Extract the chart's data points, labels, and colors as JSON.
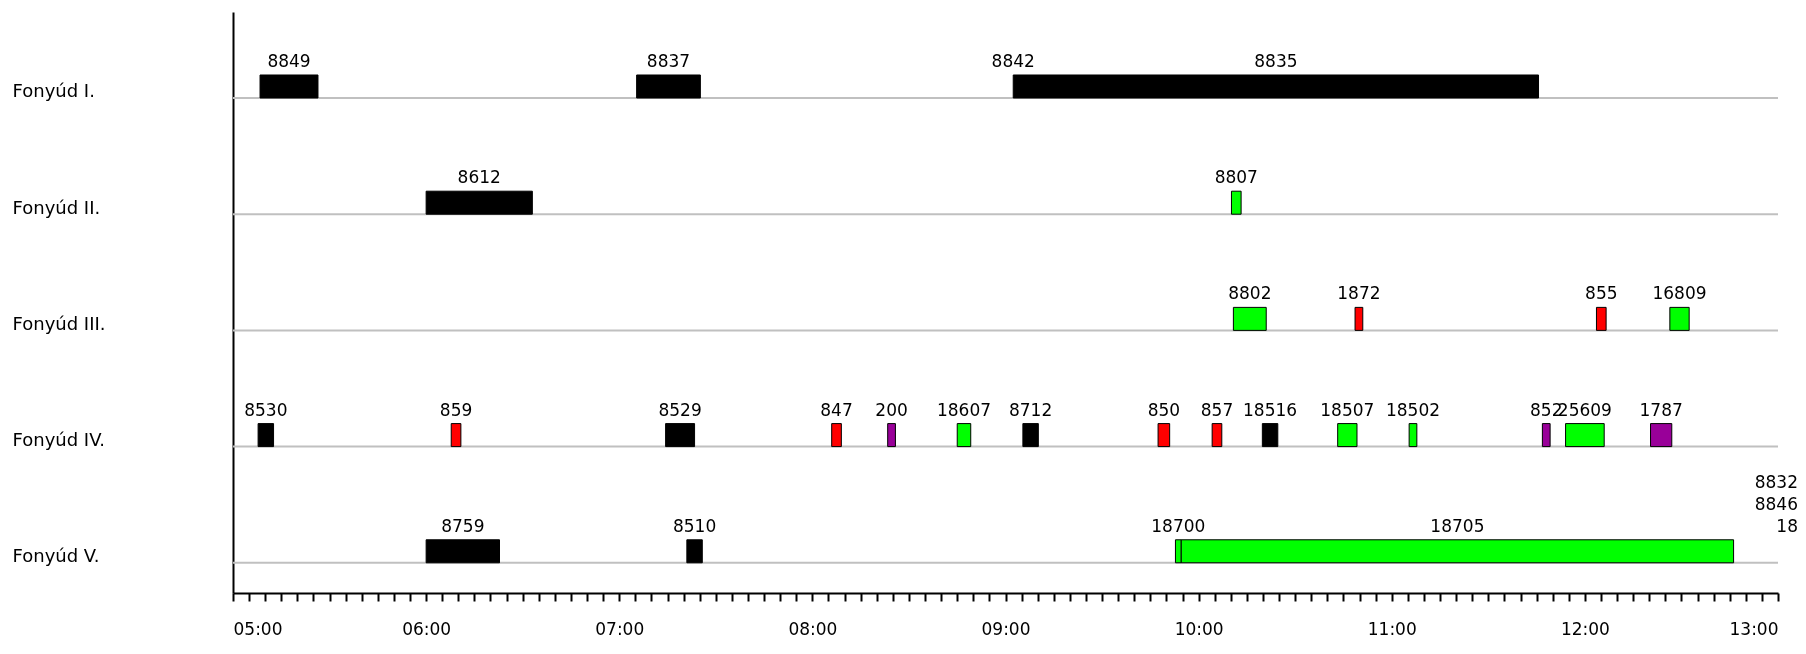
{
  "chart_data": {
    "type": "bar",
    "orientation": "horizontal",
    "grid": "y",
    "categories": [
      "Fonyúd I.",
      "Fonyúd II.",
      "Fonyúd III.",
      "Fonyúd IV.",
      "Fonyúd V."
    ],
    "xlim": [
      5,
      13
    ],
    "xticks": [
      {
        "value": 5,
        "label": "05:00"
      },
      {
        "value": 5.0833,
        "label": null
      },
      {
        "value": 5.1667,
        "label": null
      },
      {
        "value": 5.25,
        "label": null
      },
      {
        "value": 5.3333,
        "label": null
      },
      {
        "value": 5.4167,
        "label": null
      },
      {
        "value": 5.5,
        "label": null
      },
      {
        "value": 5.5833,
        "label": null
      },
      {
        "value": 5.6667,
        "label": null
      },
      {
        "value": 5.75,
        "label": null
      },
      {
        "value": 5.8333,
        "label": null
      },
      {
        "value": 5.9167,
        "label": null
      },
      {
        "value": 6,
        "label": "06:00"
      },
      {
        "value": 6.0833,
        "label": null
      },
      {
        "value": 6.1667,
        "label": null
      },
      {
        "value": 6.25,
        "label": null
      },
      {
        "value": 6.3333,
        "label": null
      },
      {
        "value": 6.4167,
        "label": null
      },
      {
        "value": 6.5,
        "label": null
      },
      {
        "value": 6.5833,
        "label": null
      },
      {
        "value": 6.6667,
        "label": null
      },
      {
        "value": 6.75,
        "label": null
      },
      {
        "value": 6.8333,
        "label": null
      },
      {
        "value": 6.9167,
        "label": null
      },
      {
        "value": 7,
        "label": "07:00"
      },
      {
        "value": 7.0833,
        "label": null
      },
      {
        "value": 7.1667,
        "label": null
      },
      {
        "value": 7.25,
        "label": null
      },
      {
        "value": 7.3333,
        "label": null
      },
      {
        "value": 7.4167,
        "label": null
      },
      {
        "value": 7.5,
        "label": null
      },
      {
        "value": 7.5833,
        "label": null
      },
      {
        "value": 7.6667,
        "label": null
      },
      {
        "value": 7.75,
        "label": null
      },
      {
        "value": 7.8333,
        "label": null
      },
      {
        "value": 7.9167,
        "label": null
      },
      {
        "value": 8,
        "label": "08:00"
      },
      {
        "value": 8.0833,
        "label": null
      },
      {
        "value": 8.1667,
        "label": null
      },
      {
        "value": 8.25,
        "label": null
      },
      {
        "value": 8.3333,
        "label": null
      },
      {
        "value": 8.4167,
        "label": null
      },
      {
        "value": 8.5,
        "label": null
      },
      {
        "value": 8.5833,
        "label": null
      },
      {
        "value": 8.6667,
        "label": null
      },
      {
        "value": 8.75,
        "label": null
      },
      {
        "value": 8.8333,
        "label": null
      },
      {
        "value": 8.9167,
        "label": null
      },
      {
        "value": 9,
        "label": "09:00"
      },
      {
        "value": 9.0833,
        "label": null
      },
      {
        "value": 9.1667,
        "label": null
      },
      {
        "value": 9.25,
        "label": null
      },
      {
        "value": 9.3333,
        "label": null
      },
      {
        "value": 9.4167,
        "label": null
      },
      {
        "value": 9.5,
        "label": null
      },
      {
        "value": 9.5833,
        "label": null
      },
      {
        "value": 9.6667,
        "label": null
      },
      {
        "value": 9.75,
        "label": null
      },
      {
        "value": 9.8333,
        "label": null
      },
      {
        "value": 9.9167,
        "label": null
      },
      {
        "value": 10,
        "label": "10:00"
      },
      {
        "value": 10.0833,
        "label": null
      },
      {
        "value": 10.1667,
        "label": null
      },
      {
        "value": 10.25,
        "label": null
      },
      {
        "value": 10.3333,
        "label": null
      },
      {
        "value": 10.4167,
        "label": null
      },
      {
        "value": 10.5,
        "label": null
      },
      {
        "value": 10.5833,
        "label": null
      },
      {
        "value": 10.6667,
        "label": null
      },
      {
        "value": 10.75,
        "label": null
      },
      {
        "value": 10.8333,
        "label": null
      },
      {
        "value": 10.9167,
        "label": null
      },
      {
        "value": 11,
        "label": "11:00"
      },
      {
        "value": 11.0833,
        "label": null
      },
      {
        "value": 11.1667,
        "label": null
      },
      {
        "value": 11.25,
        "label": null
      },
      {
        "value": 11.3333,
        "label": null
      },
      {
        "value": 11.4167,
        "label": null
      },
      {
        "value": 11.5,
        "label": null
      },
      {
        "value": 11.5833,
        "label": null
      },
      {
        "value": 11.6667,
        "label": null
      },
      {
        "value": 11.75,
        "label": null
      },
      {
        "value": 11.8333,
        "label": null
      },
      {
        "value": 11.9167,
        "label": null
      },
      {
        "value": 12,
        "label": "12:00"
      },
      {
        "value": 12.0833,
        "label": null
      },
      {
        "value": 12.1667,
        "label": null
      },
      {
        "value": 12.25,
        "label": null
      },
      {
        "value": 12.3333,
        "label": null
      },
      {
        "value": 12.4167,
        "label": null
      },
      {
        "value": 12.5,
        "label": null
      },
      {
        "value": 12.5833,
        "label": null
      },
      {
        "value": 12.6667,
        "label": null
      },
      {
        "value": 12.75,
        "label": null
      },
      {
        "value": 12.8333,
        "label": null
      },
      {
        "value": 12.9167,
        "label": null
      },
      {
        "value": 13,
        "label": "13:00"
      }
    ],
    "series": [
      {
        "name": "8849",
        "color": "#000000",
        "base": [
          5.14,
          null,
          null,
          null,
          null
        ],
        "values": [
          0.3,
          null,
          null,
          null,
          null
        ]
      },
      {
        "name": "8837",
        "color": "#000000",
        "base": [
          7.09,
          null,
          null,
          null,
          null
        ],
        "values": [
          0.33,
          null,
          null,
          null,
          null
        ]
      },
      {
        "name": "8835",
        "color": "#000000",
        "base": [
          9.04,
          null,
          null,
          null,
          null
        ],
        "values": [
          2.72,
          null,
          null,
          null,
          null
        ]
      },
      {
        "name": "8612",
        "color": "#000000",
        "base": [
          null,
          6.0,
          null,
          null,
          null
        ],
        "values": [
          null,
          0.55,
          null,
          null,
          null
        ]
      },
      {
        "name": "8807",
        "color": "#00ff00",
        "base": [
          null,
          10.17,
          null,
          null,
          null
        ],
        "values": [
          null,
          0.05,
          null,
          null,
          null
        ]
      },
      {
        "name": "8802",
        "color": "#00ff00",
        "base": [
          null,
          null,
          10.18,
          null,
          null
        ],
        "values": [
          null,
          null,
          0.17,
          null,
          null
        ]
      },
      {
        "name": "1872",
        "color": "#ff0000",
        "base": [
          null,
          null,
          10.81,
          null,
          null
        ],
        "values": [
          null,
          null,
          0.04,
          null,
          null
        ]
      },
      {
        "name": "855",
        "color": "#ff0000",
        "base": [
          null,
          null,
          12.06,
          null,
          null
        ],
        "values": [
          null,
          null,
          0.05,
          null,
          null
        ]
      },
      {
        "name": "16809",
        "color": "#00ff00",
        "base": [
          null,
          null,
          12.44,
          null,
          null
        ],
        "values": [
          null,
          null,
          0.1,
          null,
          null
        ]
      },
      {
        "name": "8530",
        "color": "#000000",
        "base": [
          null,
          null,
          null,
          5.13,
          null
        ],
        "values": [
          null,
          null,
          null,
          0.08,
          null
        ]
      },
      {
        "name": "859",
        "color": "#ff0000",
        "base": [
          null,
          null,
          null,
          6.13,
          null
        ],
        "values": [
          null,
          null,
          null,
          0.05,
          null
        ]
      },
      {
        "name": "8529",
        "color": "#000000",
        "base": [
          null,
          null,
          null,
          7.24,
          null
        ],
        "values": [
          null,
          null,
          null,
          0.15,
          null
        ]
      },
      {
        "name": "847",
        "color": "#ff0000",
        "base": [
          null,
          null,
          null,
          8.1,
          null
        ],
        "values": [
          null,
          null,
          null,
          0.05,
          null
        ]
      },
      {
        "name": "200",
        "color": "#990099",
        "base": [
          null,
          null,
          null,
          8.39,
          null
        ],
        "values": [
          null,
          null,
          null,
          0.04,
          null
        ]
      },
      {
        "name": "18607",
        "color": "#00ff00",
        "base": [
          null,
          null,
          null,
          8.75,
          null
        ],
        "values": [
          null,
          null,
          null,
          0.07,
          null
        ]
      },
      {
        "name": "8712",
        "color": "#000000",
        "base": [
          null,
          null,
          null,
          9.09,
          null
        ],
        "values": [
          null,
          null,
          null,
          0.08,
          null
        ]
      },
      {
        "name": "850",
        "color": "#ff0000",
        "base": [
          null,
          null,
          null,
          9.79,
          null
        ],
        "values": [
          null,
          null,
          null,
          0.06,
          null
        ]
      },
      {
        "name": "857",
        "color": "#ff0000",
        "base": [
          null,
          null,
          null,
          10.07,
          null
        ],
        "values": [
          null,
          null,
          null,
          0.05,
          null
        ]
      },
      {
        "name": "18516",
        "color": "#000000",
        "base": [
          null,
          null,
          null,
          10.33,
          null
        ],
        "values": [
          null,
          null,
          null,
          0.08,
          null
        ]
      },
      {
        "name": "18507",
        "color": "#00ff00",
        "base": [
          null,
          null,
          null,
          10.72,
          null
        ],
        "values": [
          null,
          null,
          null,
          0.1,
          null
        ]
      },
      {
        "name": "18502",
        "color": "#00ff00",
        "base": [
          null,
          null,
          null,
          11.09,
          null
        ],
        "values": [
          null,
          null,
          null,
          0.04,
          null
        ]
      },
      {
        "name": "852",
        "color": "#990099",
        "base": [
          null,
          null,
          null,
          11.78,
          null
        ],
        "values": [
          null,
          null,
          null,
          0.04,
          null
        ]
      },
      {
        "name": "25609",
        "color": "#00ff00",
        "base": [
          null,
          null,
          null,
          11.9,
          null
        ],
        "values": [
          null,
          null,
          null,
          0.2,
          null
        ]
      },
      {
        "name": "1787",
        "color": "#990099",
        "base": [
          null,
          null,
          null,
          12.34,
          null
        ],
        "values": [
          null,
          null,
          null,
          0.11,
          null
        ]
      },
      {
        "name": "8759",
        "color": "#000000",
        "base": [
          null,
          null,
          null,
          null,
          6.0
        ],
        "values": [
          null,
          null,
          null,
          null,
          0.38
        ]
      },
      {
        "name": "8510",
        "color": "#000000",
        "base": [
          null,
          null,
          null,
          null,
          7.35
        ],
        "values": [
          null,
          null,
          null,
          null,
          0.08
        ]
      },
      {
        "name": "18700",
        "color": "#00ff00",
        "base": [
          null,
          null,
          null,
          null,
          9.88
        ],
        "values": [
          null,
          null,
          null,
          null,
          0.03
        ]
      },
      {
        "name": "18705",
        "color": "#00ff00",
        "base": [
          null,
          null,
          null,
          null,
          9.91
        ],
        "values": [
          null,
          null,
          null,
          null,
          2.86
        ]
      }
    ],
    "annotations": [
      "18",
      "8846",
      "8832",
      {
        "text": "8842",
        "x": 9.04,
        "y": "Fonyúd I."
      }
    ]
  }
}
